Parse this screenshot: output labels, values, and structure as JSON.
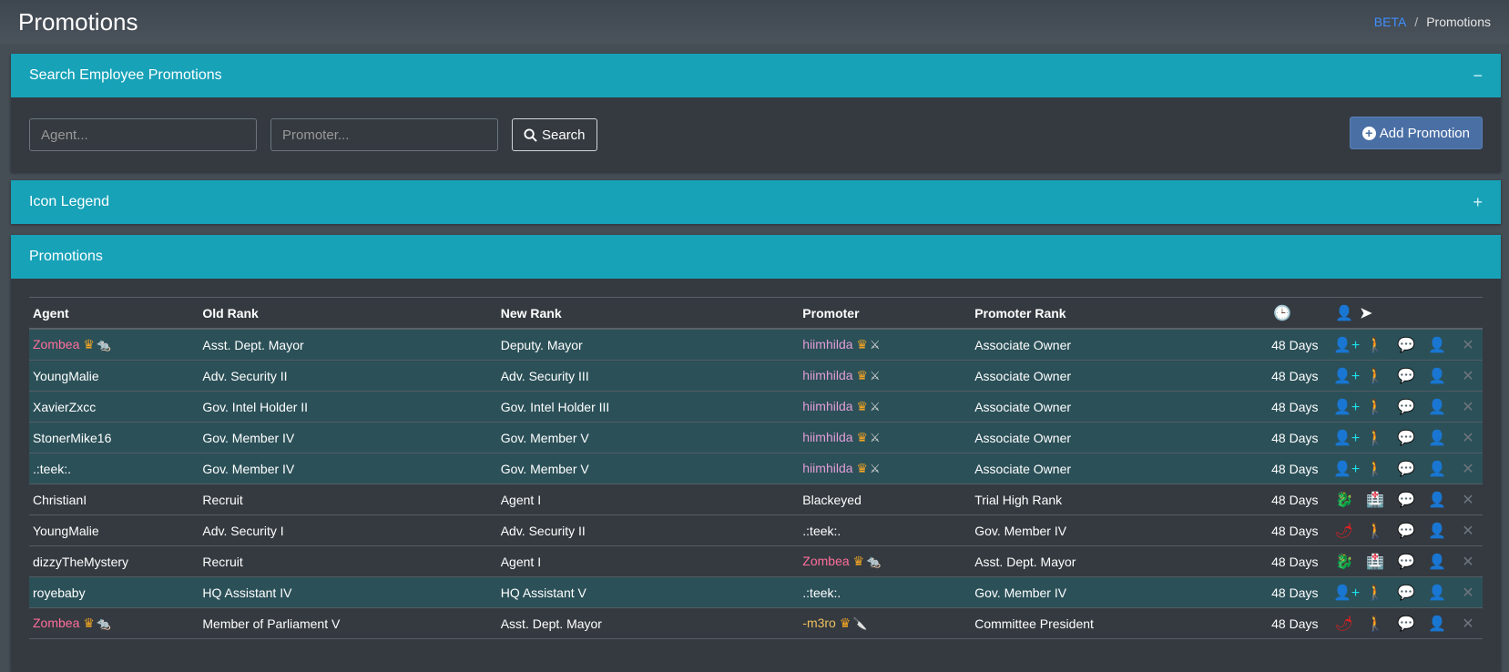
{
  "page": {
    "title": "Promotions",
    "breadcrumb": {
      "link": "BETA",
      "current": "Promotions"
    }
  },
  "search": {
    "title": "Search Employee Promotions",
    "collapse_symbol": "−",
    "agent_placeholder": "Agent...",
    "promoter_placeholder": "Promoter...",
    "search_label": "Search",
    "add_label": "Add Promotion"
  },
  "legend": {
    "title": "Icon Legend",
    "expand_symbol": "+"
  },
  "promotions": {
    "title": "Promotions",
    "headers": {
      "agent": "Agent",
      "old_rank": "Old Rank",
      "new_rank": "New Rank",
      "promoter": "Promoter",
      "promoter_rank": "Promoter Rank"
    },
    "rows": [
      {
        "agent": "Zombea",
        "agent_style": "pink",
        "agent_badges": true,
        "old": "Asst. Dept. Mayor",
        "new": "Deputy. Mayor",
        "promoter": "hiimhilda",
        "promoter_style": "violet",
        "promoter_emoji": "⚔",
        "prank": "Associate Owner",
        "days": "48 Days",
        "hl": true,
        "type": "promote"
      },
      {
        "agent": "YoungMalie",
        "agent_style": "",
        "agent_badges": false,
        "old": "Adv. Security II",
        "new": "Adv. Security III",
        "promoter": "hiimhilda",
        "promoter_style": "violet",
        "promoter_emoji": "⚔",
        "prank": "Associate Owner",
        "days": "48 Days",
        "hl": true,
        "type": "promote"
      },
      {
        "agent": "XavierZxcc",
        "agent_style": "",
        "agent_badges": false,
        "old": "Gov. Intel Holder II",
        "new": "Gov. Intel Holder III",
        "promoter": "hiimhilda",
        "promoter_style": "violet",
        "promoter_emoji": "⚔",
        "prank": "Associate Owner",
        "days": "48 Days",
        "hl": true,
        "type": "promote"
      },
      {
        "agent": "StonerMike16",
        "agent_style": "",
        "agent_badges": false,
        "old": "Gov. Member IV",
        "new": "Gov. Member V",
        "promoter": "hiimhilda",
        "promoter_style": "violet",
        "promoter_emoji": "⚔",
        "prank": "Associate Owner",
        "days": "48 Days",
        "hl": true,
        "type": "promote"
      },
      {
        "agent": ".:teek:.",
        "agent_style": "",
        "agent_badges": false,
        "old": "Gov. Member IV",
        "new": "Gov. Member V",
        "promoter": "hiimhilda",
        "promoter_style": "violet",
        "promoter_emoji": "⚔",
        "prank": "Associate Owner",
        "days": "48 Days",
        "hl": true,
        "type": "promote"
      },
      {
        "agent": "ChristianI",
        "agent_style": "",
        "agent_badges": false,
        "old": "Recruit",
        "new": "Agent I",
        "promoter": "Blackeyed",
        "promoter_style": "",
        "promoter_emoji": "",
        "prank": "Trial High Rank",
        "days": "48 Days",
        "hl": false,
        "type": "hire"
      },
      {
        "agent": "YoungMalie",
        "agent_style": "",
        "agent_badges": false,
        "old": "Adv. Security I",
        "new": "Adv. Security II",
        "promoter": ".:teek:.",
        "promoter_style": "",
        "promoter_emoji": "",
        "prank": "Gov. Member IV",
        "days": "48 Days",
        "hl": false,
        "type": "spicy"
      },
      {
        "agent": "dizzyTheMystery",
        "agent_style": "",
        "agent_badges": false,
        "old": "Recruit",
        "new": "Agent I",
        "promoter": "Zombea",
        "promoter_style": "pink",
        "promoter_emoji": "🐀",
        "prank": "Asst. Dept. Mayor",
        "days": "48 Days",
        "hl": false,
        "type": "hire"
      },
      {
        "agent": "royebaby",
        "agent_style": "",
        "agent_badges": false,
        "old": "HQ Assistant IV",
        "new": "HQ Assistant V",
        "promoter": ".:teek:.",
        "promoter_style": "",
        "promoter_emoji": "",
        "prank": "Gov. Member IV",
        "days": "48 Days",
        "hl": true,
        "type": "promote-alt"
      },
      {
        "agent": "Zombea",
        "agent_style": "pink",
        "agent_badges": true,
        "old": "Member of Parliament V",
        "new": "Asst. Dept. Mayor",
        "promoter": "-m3ro",
        "promoter_style": "gold",
        "promoter_emoji": "🔪",
        "prank": "Committee President",
        "days": "48 Days",
        "hl": false,
        "type": "spicy"
      }
    ]
  },
  "icons": {
    "clock": "clock-icon",
    "user_shield": "user-shield-icon",
    "paper_plane": "paper-plane-icon",
    "user_plus": "user-plus-icon",
    "walk": "person-walking-arrow-icon",
    "comments": "comments-icon",
    "user_edit": "user-edit-icon",
    "close": "close-icon",
    "dragon": "dragon-icon",
    "hospital": "hospital-icon",
    "pepper": "pepper-icon"
  },
  "colors": {
    "header_bg": "#17a2b8",
    "card_bg": "#343a40",
    "highlight_row": "#2b5058",
    "cyan_icon": "#1ee0e8",
    "add_button": "#4a6fa5"
  }
}
